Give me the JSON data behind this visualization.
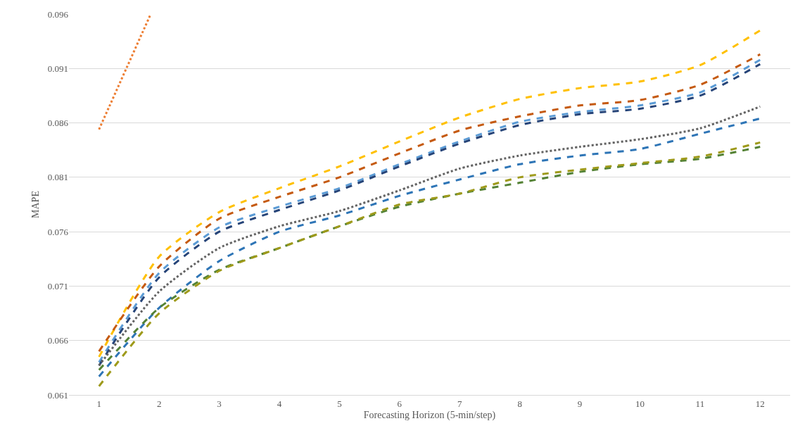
{
  "chart_data": {
    "type": "line",
    "xlabel": "Forecasting Horizon (5-min/step)",
    "ylabel": "MAPE",
    "x": [
      1,
      2,
      3,
      4,
      5,
      6,
      7,
      8,
      9,
      10,
      11,
      12
    ],
    "xlim": [
      0.5,
      12.5
    ],
    "xticks": [
      1,
      2,
      3,
      4,
      5,
      6,
      7,
      8,
      9,
      10,
      11,
      12
    ],
    "ylim": [
      0.061,
      0.096
    ],
    "yticks": [
      0.061,
      0.066,
      0.071,
      0.076,
      0.081,
      0.086,
      0.091,
      0.096
    ],
    "grid": "y",
    "marker": "none",
    "series": [
      {
        "color": "#ed7d31",
        "line_style": "dotted",
        "x": [
          1,
          1.86
        ],
        "values": [
          0.0854,
          0.096
        ]
      },
      {
        "color": "#ffc000",
        "line_style": "dashed",
        "values": [
          0.0645,
          0.0737,
          0.0778,
          0.08,
          0.082,
          0.0843,
          0.0865,
          0.0882,
          0.0892,
          0.0898,
          0.0913,
          0.0945
        ]
      },
      {
        "color": "#c55a11",
        "line_style": "dashed",
        "values": [
          0.065,
          0.0728,
          0.0772,
          0.0792,
          0.081,
          0.0832,
          0.0853,
          0.0866,
          0.0876,
          0.0881,
          0.0895,
          0.0923
        ]
      },
      {
        "color": "#5b9bd5",
        "line_style": "dashed",
        "values": [
          0.064,
          0.0722,
          0.0764,
          0.0783,
          0.08,
          0.0822,
          0.0843,
          0.0861,
          0.087,
          0.0876,
          0.0888,
          0.0918
        ]
      },
      {
        "color": "#264478",
        "line_style": "dashed",
        "values": [
          0.0637,
          0.0718,
          0.076,
          0.078,
          0.0798,
          0.082,
          0.0841,
          0.0858,
          0.0868,
          0.0873,
          0.0885,
          0.0914
        ]
      },
      {
        "color": "#636363",
        "line_style": "dotted",
        "values": [
          0.0637,
          0.0705,
          0.0745,
          0.0765,
          0.0779,
          0.0798,
          0.0818,
          0.083,
          0.0838,
          0.0845,
          0.0855,
          0.0875
        ]
      },
      {
        "color": "#2e75b6",
        "line_style": "dashed",
        "values": [
          0.0627,
          0.069,
          0.0733,
          0.076,
          0.0775,
          0.0793,
          0.0808,
          0.0822,
          0.083,
          0.0836,
          0.085,
          0.0864
        ]
      },
      {
        "color": "#548235",
        "line_style": "dashed",
        "values": [
          0.0633,
          0.069,
          0.0725,
          0.0745,
          0.0765,
          0.0783,
          0.0795,
          0.0805,
          0.0815,
          0.0822,
          0.0827,
          0.0838
        ]
      },
      {
        "color": "#9e9a1a",
        "line_style": "dashed",
        "values": [
          0.0618,
          0.0685,
          0.0724,
          0.0745,
          0.0765,
          0.0785,
          0.0795,
          0.081,
          0.0817,
          0.0823,
          0.0829,
          0.0842
        ]
      }
    ]
  }
}
